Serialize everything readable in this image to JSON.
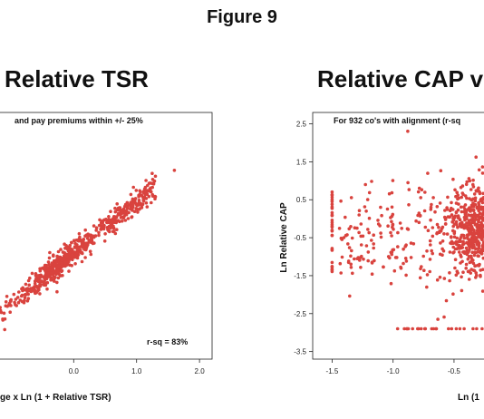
{
  "figure_title": "Figure 9",
  "chart_data": [
    {
      "type": "scatter",
      "title": "Relative TSR",
      "subtitle": "and pay premiums within +/- 25%",
      "annotation": "r-sq = 83%",
      "xlabel": "ge x Ln (1 + Relative TSR)",
      "ylabel": "",
      "xticks": [
        "0.0",
        "1.0",
        "2.0"
      ],
      "xlim": [
        -1.2,
        2.2
      ],
      "ylim": [
        -1.6,
        1.3
      ],
      "color": "#d9433e",
      "trend": {
        "slope": 0.6,
        "intercept": -0.35
      },
      "visible_x_range": [
        -1.2,
        1.6
      ],
      "points": [
        [
          1.6,
          0.62
        ],
        [
          1.3,
          0.55
        ],
        [
          1.15,
          0.5
        ],
        [
          1.05,
          0.38
        ],
        [
          0.95,
          0.42
        ]
      ]
    },
    {
      "type": "scatter",
      "title": "Relative CAP v",
      "subtitle": "For 932 co's with alignment (r-sq",
      "xlabel": "Ln (1",
      "ylabel": "Ln Relative CAP",
      "xticks": [
        "-1.5",
        "-1.0",
        "-0.5"
      ],
      "yticks": [
        "2.5",
        "1.5",
        "0.5",
        "-0.5",
        "-1.5",
        "-2.5",
        "-3.5"
      ],
      "xlim": [
        -1.6,
        -0.15
      ],
      "ylim": [
        -3.7,
        2.8
      ],
      "color": "#d9433e",
      "cap_top": 2.5,
      "cap_bottom": -2.9,
      "cluster_center": [
        -0.2,
        -0.3
      ]
    }
  ]
}
